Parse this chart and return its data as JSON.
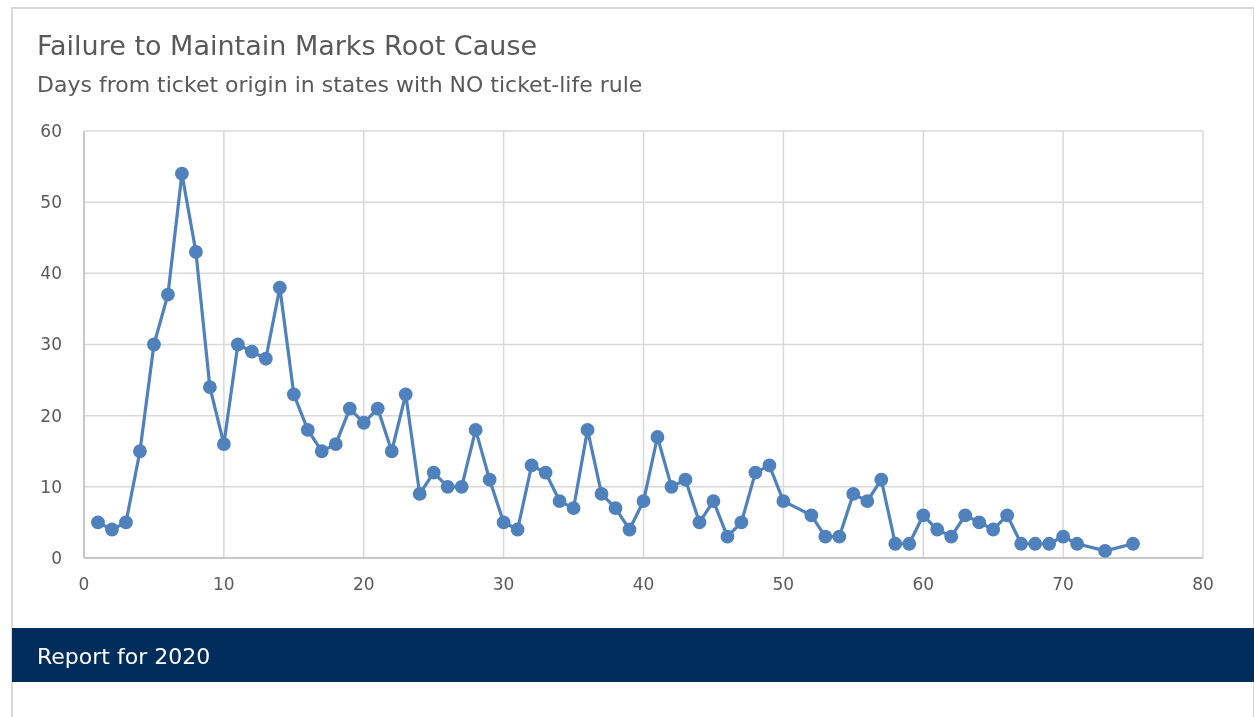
{
  "chart_data": {
    "type": "line",
    "title": "Failure to Maintain Marks Root Cause",
    "subtitle": "Days from ticket origin in states with NO ticket-life rule",
    "x": [
      1,
      2,
      3,
      4,
      5,
      6,
      7,
      8,
      9,
      10,
      11,
      12,
      13,
      14,
      15,
      16,
      17,
      18,
      19,
      20,
      21,
      22,
      23,
      24,
      25,
      26,
      27,
      28,
      29,
      30,
      31,
      32,
      33,
      34,
      35,
      36,
      37,
      38,
      39,
      40,
      41,
      42,
      43,
      44,
      45,
      46,
      47,
      48,
      49,
      50,
      52,
      53,
      54,
      55,
      56,
      57,
      58,
      59,
      60,
      61,
      62,
      63,
      64,
      65,
      66,
      67,
      68,
      69,
      70,
      71,
      73,
      75
    ],
    "series": [
      {
        "color": "#4f81bd",
        "values": [
          5,
          4,
          5,
          15,
          30,
          37,
          54,
          43,
          24,
          16,
          30,
          29,
          28,
          38,
          23,
          18,
          15,
          16,
          21,
          19,
          21,
          15,
          23,
          9,
          12,
          10,
          10,
          18,
          11,
          5,
          4,
          13,
          12,
          8,
          7,
          18,
          9,
          7,
          4,
          8,
          17,
          10,
          11,
          5,
          8,
          3,
          5,
          12,
          13,
          8,
          6,
          3,
          3,
          9,
          8,
          11,
          2,
          2,
          6,
          4,
          3,
          6,
          5,
          4,
          6,
          2,
          2,
          2,
          3,
          2,
          1,
          2
        ]
      }
    ],
    "xlim": [
      0,
      80
    ],
    "xticks": [
      0,
      10,
      20,
      30,
      40,
      50,
      60,
      70,
      80
    ],
    "ylim": [
      0,
      60
    ],
    "yticks": [
      0,
      10,
      20,
      30,
      40,
      50,
      60
    ],
    "grid": true,
    "marker": "circle",
    "line_style": "solid",
    "annotations": [
      "Report for 2020"
    ]
  }
}
